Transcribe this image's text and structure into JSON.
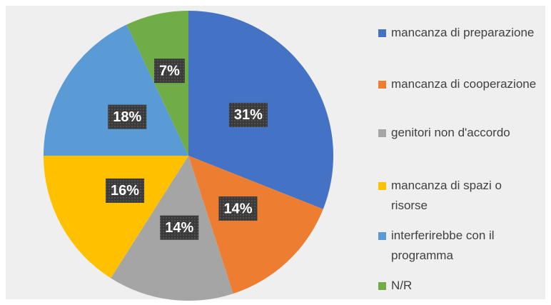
{
  "chart_data": {
    "type": "pie",
    "categories": [
      "mancanza di preparazione",
      "mancanza di cooperazione",
      "genitori non d'accordo",
      "mancanza di spazi o risorse",
      "interferirebbe con il programma",
      "N/R"
    ],
    "values": [
      31,
      14,
      14,
      16,
      18,
      7
    ],
    "value_labels": [
      "31%",
      "14%",
      "14%",
      "16%",
      "18%",
      "7%"
    ],
    "colors": [
      "#4472c4",
      "#ed7d31",
      "#a5a5a5",
      "#ffc000",
      "#5b9bd5",
      "#70ad47"
    ],
    "legend": "right"
  }
}
